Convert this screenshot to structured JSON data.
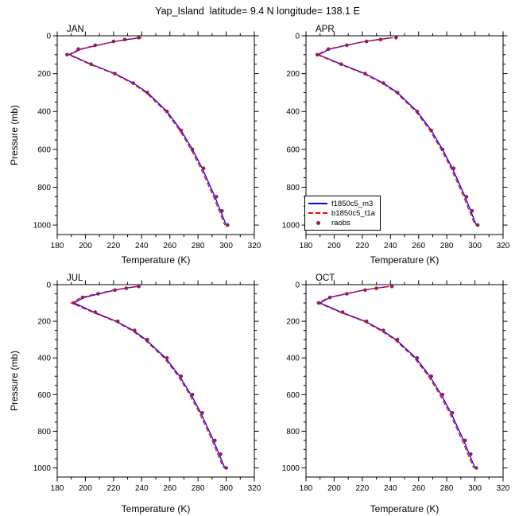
{
  "title": "Yap_Island  latitude= 9.4 N longitude= 138.1 E",
  "axes": {
    "xlabel": "Temperature (K)",
    "ylabel": "Pressure (mb)",
    "xlim": [
      180,
      320
    ],
    "xticks": [
      180,
      200,
      220,
      240,
      260,
      280,
      300,
      320
    ],
    "xminor_step": 10,
    "ylim": [
      0,
      1050
    ],
    "yticks": [
      0,
      200,
      400,
      600,
      800,
      1000
    ],
    "yminor_step": 50,
    "y_inverted": true,
    "grid": false
  },
  "legend": {
    "position": "inside-apr-panel-bottom-left",
    "entries": [
      {
        "label": "f1850c5_m3",
        "color": "#0000ff",
        "style": "solid"
      },
      {
        "label": "b1850c5_t1a",
        "color": "#ff0000",
        "style": "dashed"
      },
      {
        "label": "raobs",
        "color": "#8b2252",
        "style": "dots"
      }
    ]
  },
  "chart_data": [
    {
      "type": "line",
      "panel": "JAN",
      "pressure_mb": [
        10,
        20,
        30,
        50,
        70,
        100,
        150,
        200,
        250,
        300,
        400,
        500,
        600,
        700,
        850,
        925,
        1000
      ],
      "series": [
        {
          "name": "f1850c5_m3",
          "values": [
            239,
            229,
            221,
            209,
            197,
            189,
            204,
            221,
            234,
            244,
            258,
            268,
            276,
            283,
            292,
            296,
            300
          ]
        },
        {
          "name": "b1850c5_t1a",
          "values": [
            240,
            230,
            221,
            208,
            196,
            188,
            203,
            220,
            233,
            243,
            257,
            267,
            275,
            282,
            291,
            295,
            299
          ]
        },
        {
          "name": "raobs",
          "values": [
            238,
            228,
            220,
            207,
            195,
            187,
            204,
            221,
            234,
            244,
            258,
            268,
            276,
            284,
            293,
            297,
            301
          ]
        }
      ]
    },
    {
      "type": "line",
      "panel": "APR",
      "pressure_mb": [
        10,
        20,
        30,
        50,
        70,
        100,
        150,
        200,
        250,
        300,
        400,
        500,
        600,
        700,
        850,
        925,
        1000
      ],
      "series": [
        {
          "name": "f1850c5_m3",
          "values": [
            241,
            231,
            222,
            209,
            197,
            189,
            205,
            222,
            235,
            245,
            259,
            269,
            277,
            284,
            293,
            297,
            301
          ]
        },
        {
          "name": "b1850c5_t1a",
          "values": [
            242,
            232,
            222,
            208,
            196,
            188,
            204,
            221,
            234,
            244,
            258,
            268,
            276,
            283,
            292,
            296,
            300
          ]
        },
        {
          "name": "raobs",
          "values": [
            244,
            233,
            223,
            209,
            196,
            188,
            205,
            222,
            235,
            245,
            259,
            269,
            277,
            285,
            294,
            298,
            302
          ]
        }
      ]
    },
    {
      "type": "line",
      "panel": "JUL",
      "pressure_mb": [
        10,
        20,
        30,
        50,
        70,
        100,
        150,
        200,
        250,
        300,
        400,
        500,
        600,
        700,
        850,
        925,
        1000
      ],
      "series": [
        {
          "name": "f1850c5_m3",
          "values": [
            237,
            228,
            221,
            210,
            199,
            192,
            206,
            222,
            234,
            243,
            257,
            267,
            275,
            282,
            291,
            295,
            299
          ]
        },
        {
          "name": "b1850c5_t1a",
          "values": [
            236,
            227,
            220,
            208,
            197,
            190,
            205,
            221,
            233,
            242,
            256,
            266,
            274,
            281,
            290,
            294,
            298
          ]
        },
        {
          "name": "raobs",
          "values": [
            238,
            229,
            221,
            209,
            198,
            192,
            207,
            223,
            235,
            244,
            258,
            268,
            276,
            283,
            292,
            296,
            300
          ]
        }
      ]
    },
    {
      "type": "line",
      "panel": "OCT",
      "pressure_mb": [
        10,
        20,
        30,
        50,
        70,
        100,
        150,
        200,
        250,
        300,
        400,
        500,
        600,
        700,
        850,
        925,
        1000
      ],
      "series": [
        {
          "name": "f1850c5_m3",
          "values": [
            239,
            229,
            221,
            209,
            197,
            190,
            205,
            222,
            234,
            244,
            258,
            268,
            276,
            283,
            292,
            296,
            300
          ]
        },
        {
          "name": "b1850c5_t1a",
          "values": [
            239,
            229,
            220,
            208,
            196,
            189,
            204,
            221,
            233,
            243,
            257,
            267,
            275,
            282,
            291,
            295,
            299
          ]
        },
        {
          "name": "raobs",
          "values": [
            241,
            230,
            222,
            209,
            197,
            189,
            206,
            223,
            235,
            245,
            259,
            269,
            277,
            284,
            293,
            297,
            301
          ]
        }
      ]
    }
  ]
}
